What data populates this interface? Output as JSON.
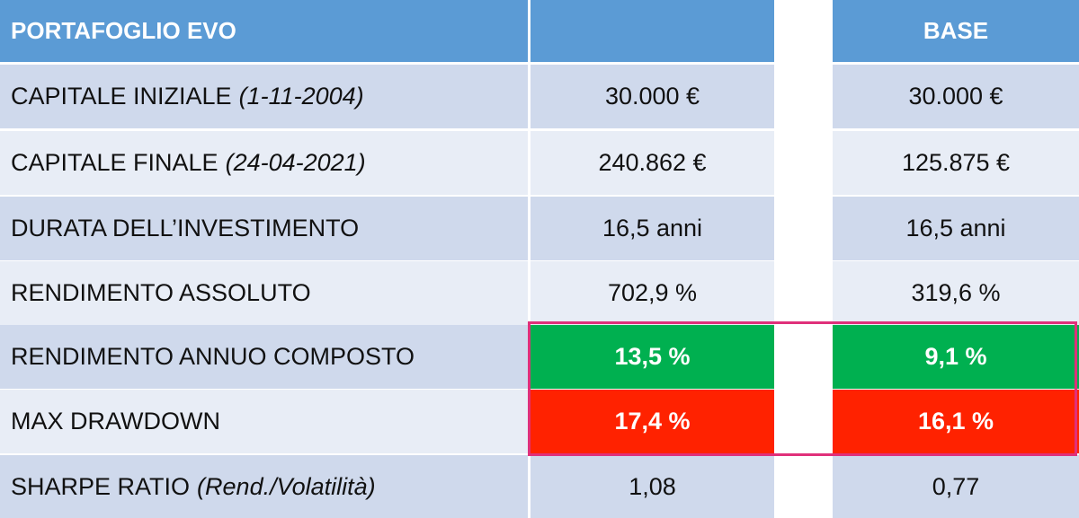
{
  "table": {
    "header": {
      "title": "PORTAFOGLIO EVO",
      "base": "BASE"
    },
    "rows": [
      {
        "label": "CAPITALE INIZIALE",
        "note": "(1-11-2004)",
        "evo": "30.000 €",
        "base": "30.000 €"
      },
      {
        "label": "CAPITALE FINALE",
        "note": "(24-04-2021)",
        "evo": "240.862 €",
        "base": "125.875 €"
      },
      {
        "label": "DURATA DELL’INVESTIMENTO",
        "evo": "16,5 anni",
        "base": "16,5 anni"
      },
      {
        "label": "RENDIMENTO ASSOLUTO",
        "evo": "702,9 %",
        "base": "319,6 %"
      },
      {
        "label": "RENDIMENTO ANNUO COMPOSTO",
        "evo": "13,5 %",
        "base": "9,1 %"
      },
      {
        "label": "MAX DRAWDOWN",
        "evo": "17,4 %",
        "base": "16,1 %"
      },
      {
        "label": "SHARPE RATIO",
        "note": "(Rend./Volatilità)",
        "evo": "1,08",
        "base": "0,77"
      }
    ]
  }
}
